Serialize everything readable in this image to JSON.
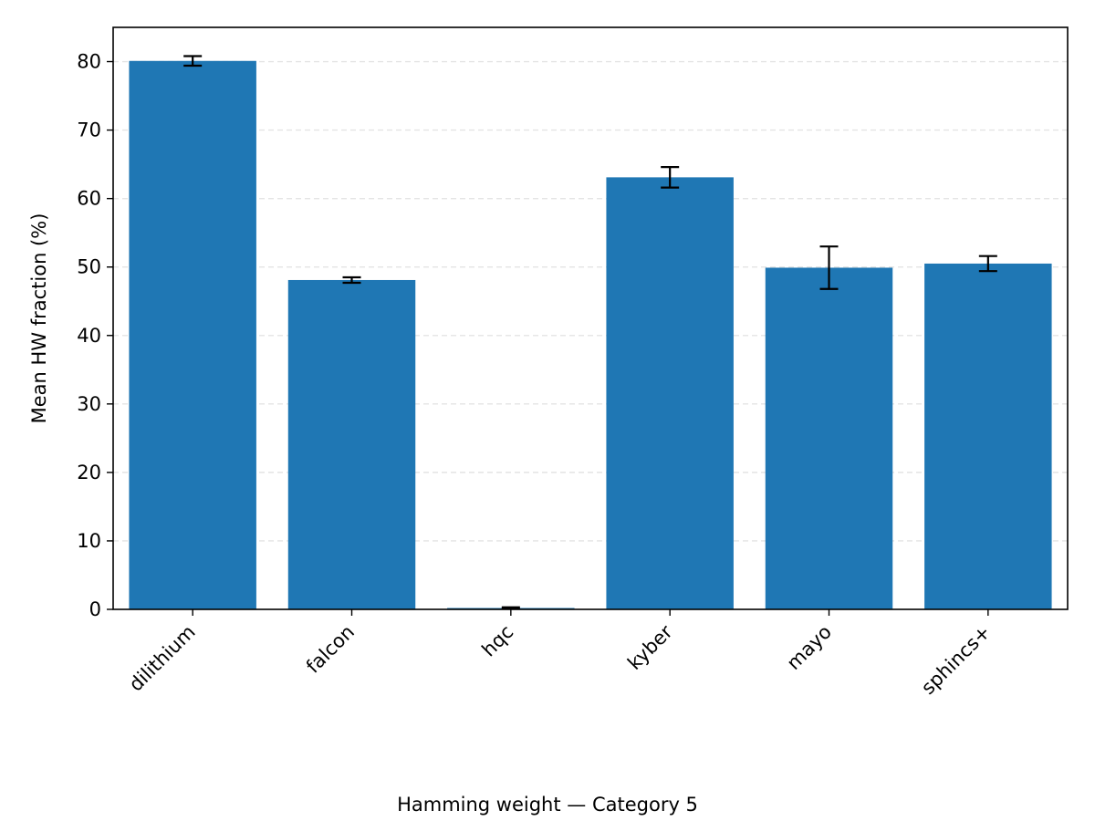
{
  "chart_data": {
    "type": "bar",
    "categories": [
      "dilithium",
      "falcon",
      "hqc",
      "kyber",
      "mayo",
      "sphincs+"
    ],
    "values": [
      80.1,
      48.1,
      0.2,
      63.1,
      49.9,
      50.5
    ],
    "errors": [
      0.7,
      0.4,
      0.1,
      1.5,
      3.1,
      1.1
    ],
    "ylabel": "Mean HW fraction (%)",
    "xlabel": "Hamming weight — Category 5",
    "ylim": [
      0,
      85
    ],
    "yticks": [
      0,
      10,
      20,
      30,
      40,
      50,
      60,
      70,
      80
    ],
    "grid": "horizontal dashed",
    "bar_color": "#1f77b4",
    "grid_color": "#e4e4e4"
  }
}
